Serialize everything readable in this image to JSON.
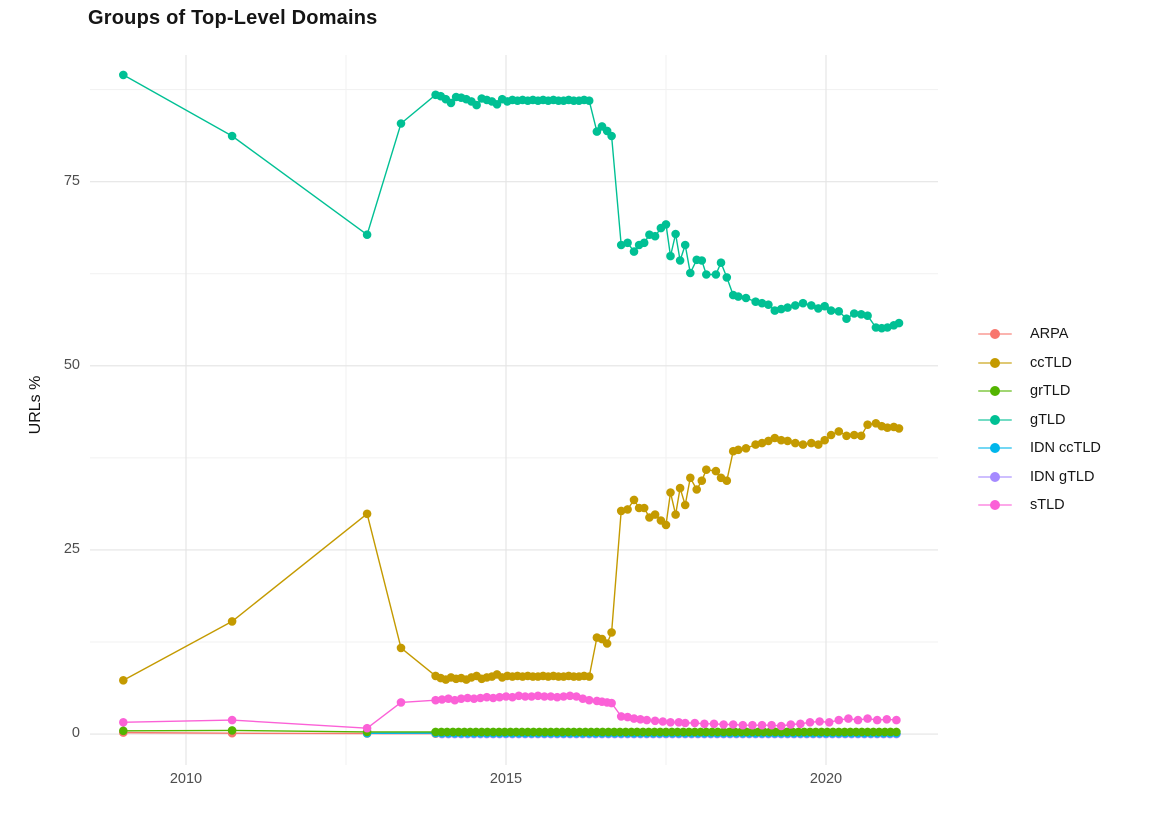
{
  "chart_data": {
    "type": "line",
    "title": "Groups of Top-Level Domains",
    "xlabel": "",
    "ylabel": "URLs %",
    "background": "#FFFFFF",
    "grid": true,
    "legend_position": "right",
    "x_axis": {
      "range": [
        2008.5,
        2021.75
      ],
      "ticks": [
        {
          "value": 2010,
          "label": "2010"
        },
        {
          "value": 2015,
          "label": "2015"
        },
        {
          "value": 2020,
          "label": "2020"
        }
      ],
      "minor": [
        2012.5,
        2017.5
      ]
    },
    "y_axis": {
      "range": [
        -4.2,
        92.2
      ],
      "ticks": [
        {
          "value": 0,
          "label": "0"
        },
        {
          "value": 25,
          "label": "25"
        },
        {
          "value": 50,
          "label": "50"
        },
        {
          "value": 75,
          "label": "75"
        }
      ],
      "minor": [
        12.5,
        37.5,
        62.5,
        87.5
      ]
    },
    "draw_order": [
      "ARPA",
      "IDN gTLD",
      "IDN ccTLD",
      "grTLD",
      "ccTLD",
      "gTLD",
      "sTLD"
    ],
    "series": [
      {
        "name": "ARPA",
        "color": "#F8766D",
        "points": [
          [
            2009.02,
            0.2
          ],
          [
            2010.72,
            0.12
          ],
          [
            2012.83,
            0.06
          ]
        ],
        "dense": {
          "from": 2013.9,
          "to": 2021.12,
          "step": 0.1,
          "value": 0.05
        }
      },
      {
        "name": "ccTLD",
        "color": "#C49A00",
        "points": [
          [
            2009.02,
            7.3
          ],
          [
            2010.72,
            15.3
          ],
          [
            2012.83,
            29.9
          ],
          [
            2013.36,
            11.7
          ],
          [
            2013.9,
            7.9
          ],
          [
            2013.98,
            7.6
          ],
          [
            2014.06,
            7.4
          ],
          [
            2014.14,
            7.7
          ],
          [
            2014.22,
            7.5
          ],
          [
            2014.3,
            7.6
          ],
          [
            2014.38,
            7.4
          ],
          [
            2014.46,
            7.7
          ],
          [
            2014.54,
            7.9
          ],
          [
            2014.62,
            7.5
          ],
          [
            2014.7,
            7.7
          ],
          [
            2014.78,
            7.8
          ],
          [
            2014.86,
            8.1
          ],
          [
            2014.94,
            7.7
          ],
          [
            2015.02,
            7.9
          ],
          [
            2015.1,
            7.8
          ],
          [
            2015.18,
            7.9
          ],
          [
            2015.26,
            7.8
          ],
          [
            2015.34,
            7.9
          ],
          [
            2015.42,
            7.8
          ],
          [
            2015.5,
            7.8
          ],
          [
            2015.58,
            7.9
          ],
          [
            2015.66,
            7.8
          ],
          [
            2015.74,
            7.9
          ],
          [
            2015.82,
            7.8
          ],
          [
            2015.9,
            7.8
          ],
          [
            2015.98,
            7.9
          ],
          [
            2016.06,
            7.8
          ],
          [
            2016.14,
            7.8
          ],
          [
            2016.22,
            7.9
          ],
          [
            2016.3,
            7.8
          ],
          [
            2016.42,
            13.1
          ],
          [
            2016.5,
            12.9
          ],
          [
            2016.58,
            12.3
          ],
          [
            2016.65,
            13.8
          ],
          [
            2016.8,
            30.3
          ],
          [
            2016.9,
            30.5
          ],
          [
            2017.0,
            31.8
          ],
          [
            2017.08,
            30.7
          ],
          [
            2017.16,
            30.7
          ],
          [
            2017.24,
            29.4
          ],
          [
            2017.33,
            29.8
          ],
          [
            2017.42,
            29.0
          ],
          [
            2017.5,
            28.4
          ],
          [
            2017.57,
            32.8
          ],
          [
            2017.65,
            29.8
          ],
          [
            2017.72,
            33.4
          ],
          [
            2017.8,
            31.1
          ],
          [
            2017.88,
            34.8
          ],
          [
            2017.98,
            33.2
          ],
          [
            2018.06,
            34.4
          ],
          [
            2018.13,
            35.9
          ],
          [
            2018.28,
            35.7
          ],
          [
            2018.36,
            34.8
          ],
          [
            2018.45,
            34.4
          ],
          [
            2018.55,
            38.4
          ],
          [
            2018.63,
            38.6
          ],
          [
            2018.75,
            38.8
          ],
          [
            2018.9,
            39.3
          ],
          [
            2019.0,
            39.5
          ],
          [
            2019.1,
            39.8
          ],
          [
            2019.2,
            40.2
          ],
          [
            2019.3,
            39.9
          ],
          [
            2019.4,
            39.8
          ],
          [
            2019.52,
            39.5
          ],
          [
            2019.64,
            39.3
          ],
          [
            2019.77,
            39.5
          ],
          [
            2019.88,
            39.3
          ],
          [
            2019.98,
            39.9
          ],
          [
            2020.08,
            40.6
          ],
          [
            2020.2,
            41.1
          ],
          [
            2020.32,
            40.5
          ],
          [
            2020.44,
            40.6
          ],
          [
            2020.55,
            40.5
          ],
          [
            2020.65,
            42.0
          ],
          [
            2020.78,
            42.2
          ],
          [
            2020.87,
            41.8
          ],
          [
            2020.96,
            41.6
          ],
          [
            2021.06,
            41.7
          ],
          [
            2021.14,
            41.5
          ]
        ]
      },
      {
        "name": "grTLD",
        "color": "#53B400",
        "points": [
          [
            2009.02,
            0.45
          ],
          [
            2010.72,
            0.5
          ],
          [
            2012.83,
            0.3
          ]
        ],
        "dense": {
          "from": 2013.9,
          "to": 2021.12,
          "step": 0.09,
          "value": 0.3
        }
      },
      {
        "name": "gTLD",
        "color": "#00C094",
        "points": [
          [
            2009.02,
            89.5
          ],
          [
            2010.72,
            81.2
          ],
          [
            2012.83,
            67.8
          ],
          [
            2013.36,
            82.9
          ],
          [
            2013.9,
            86.8
          ],
          [
            2013.98,
            86.6
          ],
          [
            2014.06,
            86.2
          ],
          [
            2014.14,
            85.7
          ],
          [
            2014.22,
            86.5
          ],
          [
            2014.3,
            86.4
          ],
          [
            2014.38,
            86.2
          ],
          [
            2014.46,
            85.9
          ],
          [
            2014.54,
            85.4
          ],
          [
            2014.62,
            86.3
          ],
          [
            2014.7,
            86.1
          ],
          [
            2014.78,
            85.9
          ],
          [
            2014.86,
            85.5
          ],
          [
            2014.94,
            86.2
          ],
          [
            2015.02,
            85.9
          ],
          [
            2015.1,
            86.1
          ],
          [
            2015.18,
            86.0
          ],
          [
            2015.26,
            86.1
          ],
          [
            2015.34,
            86.0
          ],
          [
            2015.42,
            86.1
          ],
          [
            2015.5,
            86.0
          ],
          [
            2015.58,
            86.1
          ],
          [
            2015.66,
            86.0
          ],
          [
            2015.74,
            86.1
          ],
          [
            2015.82,
            86.0
          ],
          [
            2015.9,
            86.0
          ],
          [
            2015.98,
            86.1
          ],
          [
            2016.06,
            86.0
          ],
          [
            2016.14,
            86.0
          ],
          [
            2016.22,
            86.1
          ],
          [
            2016.3,
            86.0
          ],
          [
            2016.42,
            81.8
          ],
          [
            2016.5,
            82.5
          ],
          [
            2016.58,
            81.9
          ],
          [
            2016.65,
            81.2
          ],
          [
            2016.8,
            66.4
          ],
          [
            2016.9,
            66.7
          ],
          [
            2017.0,
            65.5
          ],
          [
            2017.08,
            66.4
          ],
          [
            2017.16,
            66.7
          ],
          [
            2017.24,
            67.8
          ],
          [
            2017.33,
            67.6
          ],
          [
            2017.42,
            68.7
          ],
          [
            2017.5,
            69.2
          ],
          [
            2017.57,
            64.9
          ],
          [
            2017.65,
            67.9
          ],
          [
            2017.72,
            64.3
          ],
          [
            2017.8,
            66.4
          ],
          [
            2017.88,
            62.6
          ],
          [
            2017.98,
            64.4
          ],
          [
            2018.06,
            64.3
          ],
          [
            2018.13,
            62.4
          ],
          [
            2018.28,
            62.4
          ],
          [
            2018.36,
            64.0
          ],
          [
            2018.45,
            62.0
          ],
          [
            2018.55,
            59.6
          ],
          [
            2018.63,
            59.4
          ],
          [
            2018.75,
            59.2
          ],
          [
            2018.9,
            58.7
          ],
          [
            2019.0,
            58.5
          ],
          [
            2019.1,
            58.3
          ],
          [
            2019.2,
            57.5
          ],
          [
            2019.3,
            57.7
          ],
          [
            2019.4,
            57.9
          ],
          [
            2019.52,
            58.2
          ],
          [
            2019.64,
            58.5
          ],
          [
            2019.77,
            58.2
          ],
          [
            2019.88,
            57.8
          ],
          [
            2019.98,
            58.1
          ],
          [
            2020.08,
            57.5
          ],
          [
            2020.2,
            57.4
          ],
          [
            2020.32,
            56.4
          ],
          [
            2020.44,
            57.1
          ],
          [
            2020.55,
            57.0
          ],
          [
            2020.65,
            56.8
          ],
          [
            2020.78,
            55.2
          ],
          [
            2020.87,
            55.1
          ],
          [
            2020.96,
            55.2
          ],
          [
            2021.06,
            55.5
          ],
          [
            2021.14,
            55.8
          ]
        ]
      },
      {
        "name": "IDN ccTLD",
        "color": "#00B6EB",
        "points": [
          [
            2012.83,
            0.1
          ]
        ],
        "dense": {
          "from": 2013.9,
          "to": 2021.12,
          "step": 0.1,
          "value": 0.12
        }
      },
      {
        "name": "IDN gTLD",
        "color": "#A58AFF",
        "points": [],
        "dense": {
          "from": 2014.0,
          "to": 2021.12,
          "step": 0.1,
          "value": 0.0
        }
      },
      {
        "name": "sTLD",
        "color": "#FB61D7",
        "points": [
          [
            2009.02,
            1.6
          ],
          [
            2010.72,
            1.9
          ],
          [
            2012.83,
            0.8
          ],
          [
            2013.36,
            4.3
          ],
          [
            2013.9,
            4.6
          ],
          [
            2014.0,
            4.7
          ],
          [
            2014.1,
            4.8
          ],
          [
            2014.2,
            4.6
          ],
          [
            2014.3,
            4.8
          ],
          [
            2014.4,
            4.9
          ],
          [
            2014.5,
            4.8
          ],
          [
            2014.6,
            4.9
          ],
          [
            2014.7,
            5.0
          ],
          [
            2014.8,
            4.9
          ],
          [
            2014.9,
            5.0
          ],
          [
            2015.0,
            5.1
          ],
          [
            2015.1,
            5.0
          ],
          [
            2015.2,
            5.2
          ],
          [
            2015.3,
            5.1
          ],
          [
            2015.4,
            5.1
          ],
          [
            2015.5,
            5.2
          ],
          [
            2015.6,
            5.1
          ],
          [
            2015.7,
            5.1
          ],
          [
            2015.8,
            5.0
          ],
          [
            2015.9,
            5.1
          ],
          [
            2016.0,
            5.2
          ],
          [
            2016.1,
            5.1
          ],
          [
            2016.2,
            4.8
          ],
          [
            2016.3,
            4.6
          ],
          [
            2016.42,
            4.5
          ],
          [
            2016.5,
            4.4
          ],
          [
            2016.58,
            4.3
          ],
          [
            2016.65,
            4.2
          ],
          [
            2016.8,
            2.4
          ],
          [
            2016.9,
            2.3
          ],
          [
            2017.0,
            2.1
          ],
          [
            2017.1,
            2.0
          ],
          [
            2017.2,
            1.9
          ],
          [
            2017.33,
            1.8
          ],
          [
            2017.45,
            1.7
          ],
          [
            2017.57,
            1.6
          ],
          [
            2017.7,
            1.6
          ],
          [
            2017.8,
            1.5
          ],
          [
            2017.95,
            1.5
          ],
          [
            2018.1,
            1.4
          ],
          [
            2018.25,
            1.4
          ],
          [
            2018.4,
            1.3
          ],
          [
            2018.55,
            1.3
          ],
          [
            2018.7,
            1.2
          ],
          [
            2018.85,
            1.2
          ],
          [
            2019.0,
            1.2
          ],
          [
            2019.15,
            1.2
          ],
          [
            2019.3,
            1.1
          ],
          [
            2019.45,
            1.3
          ],
          [
            2019.6,
            1.4
          ],
          [
            2019.75,
            1.6
          ],
          [
            2019.9,
            1.7
          ],
          [
            2020.05,
            1.6
          ],
          [
            2020.2,
            1.9
          ],
          [
            2020.35,
            2.1
          ],
          [
            2020.5,
            1.9
          ],
          [
            2020.65,
            2.1
          ],
          [
            2020.8,
            1.9
          ],
          [
            2020.95,
            2.0
          ],
          [
            2021.1,
            1.9
          ]
        ]
      }
    ]
  }
}
